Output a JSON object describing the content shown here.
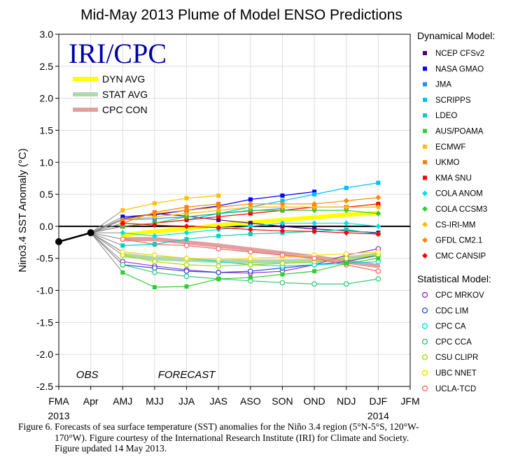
{
  "chart_data": {
    "type": "line",
    "title": "Mid-May 2013 Plume of Model ENSO Predictions",
    "ylabel": "Nino3.4 SST Anomaly (°C)",
    "logo": "IRI/CPC",
    "x": [
      "FMA",
      "Apr",
      "AMJ",
      "MJJ",
      "JJA",
      "JAS",
      "ASO",
      "SON",
      "OND",
      "NDJ",
      "DJF",
      "JFM"
    ],
    "year_labels": {
      "start": "2013",
      "end": "2014"
    },
    "region_labels": {
      "obs": "OBS",
      "forecast": "FORECAST"
    },
    "ylim": [
      -2.5,
      3.0
    ],
    "yticks": [
      "-2.5",
      "-2.0",
      "-1.5",
      "-1.0",
      "-0.5",
      "0.0",
      "0.5",
      "1.0",
      "1.5",
      "2.0",
      "2.5",
      "3.0"
    ],
    "grid": true,
    "observed": {
      "x": [
        "FMA",
        "Apr"
      ],
      "values": [
        -0.24,
        -0.1
      ],
      "color": "#000000"
    },
    "averages": [
      {
        "name": "DYN AVG",
        "color": "#ffff00",
        "values": [
          -0.14,
          -0.08,
          -0.04,
          0.02,
          0.06,
          0.1,
          0.14,
          0.18,
          0.21
        ]
      },
      {
        "name": "STAT AVG",
        "color": "#b0d8b0",
        "values": [
          -0.45,
          -0.5,
          -0.52,
          -0.54,
          -0.55,
          -0.55,
          -0.54,
          -0.5,
          -0.44
        ]
      },
      {
        "name": "CPC CON",
        "color": "#e0a0a0",
        "values": [
          -0.2,
          -0.2,
          -0.25,
          -0.3,
          -0.36,
          -0.42,
          -0.48,
          -0.55,
          -0.62
        ]
      }
    ],
    "legend_position": "right",
    "dynamical_heading": "Dynamical Model:",
    "statistical_heading": "Statistical Model:",
    "dynamical_models": [
      {
        "name": "NCEP CFSv2",
        "color": "#4b0082",
        "values": [
          0.12,
          0.2,
          0.16,
          0.1,
          0.05,
          0.0,
          -0.04,
          -0.07,
          -0.1
        ]
      },
      {
        "name": "NASA GMAO",
        "color": "#0000ff",
        "values": [
          0.15,
          0.18,
          0.25,
          0.32,
          0.42,
          0.48,
          0.54,
          null,
          null
        ]
      },
      {
        "name": "JMA",
        "color": "#1e90ff",
        "values": [
          0.1,
          0.12,
          0.15,
          0.2,
          0.24,
          0.28,
          null,
          null,
          null
        ]
      },
      {
        "name": "SCRIPPS",
        "color": "#00bfff",
        "values": [
          0.0,
          0.05,
          0.1,
          0.2,
          0.3,
          0.4,
          0.5,
          0.6,
          0.68
        ]
      },
      {
        "name": "LDEO",
        "color": "#00d0c0",
        "values": [
          -0.3,
          -0.28,
          -0.2,
          -0.15,
          -0.12,
          -0.1,
          -0.08,
          -0.05,
          -0.12
        ]
      },
      {
        "name": "AUS/POAMA",
        "color": "#32cd32",
        "values": [
          -0.72,
          -0.95,
          -0.94,
          -0.82,
          -0.8,
          -0.75,
          -0.7,
          -0.58,
          -0.5
        ]
      },
      {
        "name": "ECMWF",
        "color": "#ffc000",
        "values": [
          0.25,
          0.36,
          0.44,
          0.48,
          null,
          null,
          null,
          null,
          null
        ]
      },
      {
        "name": "UKMO",
        "color": "#ff7f00",
        "values": [
          0.05,
          0.22,
          0.3,
          0.35,
          null,
          null,
          null,
          null,
          null
        ]
      },
      {
        "name": "KMA SNU",
        "color": "#ff0000",
        "values": [
          0.0,
          0.05,
          0.1,
          0.15,
          0.2,
          0.25,
          0.3,
          0.3,
          0.35
        ]
      },
      {
        "name": "COLA ANOM",
        "color": "#00e0e0",
        "values": [
          -0.1,
          -0.15,
          -0.1,
          -0.05,
          0.0,
          0.05,
          0.05,
          0.05,
          0.0
        ]
      },
      {
        "name": "COLA CCSM3",
        "color": "#33cc33",
        "values": [
          0.0,
          0.05,
          0.15,
          0.2,
          0.25,
          0.25,
          0.25,
          0.25,
          0.2
        ]
      },
      {
        "name": "CS-IRI-MM",
        "color": "#ffbb00",
        "values": [
          0.1,
          0.15,
          0.2,
          0.25,
          0.3,
          0.3,
          0.3,
          0.3,
          0.3
        ]
      },
      {
        "name": "GFDL CM2.1",
        "color": "#ff8800",
        "values": [
          0.1,
          0.2,
          0.25,
          0.3,
          0.35,
          0.35,
          0.35,
          0.4,
          0.45
        ]
      },
      {
        "name": "CMC CANSIP",
        "color": "#ff0000",
        "values": [
          0.05,
          0.02,
          0.0,
          -0.02,
          -0.05,
          -0.07,
          -0.08,
          -0.1,
          -0.12
        ]
      }
    ],
    "statistical_models": [
      {
        "name": "CPC MRKOV",
        "color": "#9933cc",
        "values": [
          -0.55,
          -0.62,
          -0.68,
          -0.72,
          -0.73,
          -0.7,
          -0.6,
          -0.45,
          -0.35
        ]
      },
      {
        "name": "CDC LIM",
        "color": "#3355cc",
        "values": [
          -0.6,
          -0.65,
          -0.7,
          -0.72,
          -0.7,
          -0.65,
          -0.6,
          -0.55,
          -0.45
        ]
      },
      {
        "name": "CPC CA",
        "color": "#00ddee",
        "values": [
          -0.4,
          -0.45,
          -0.5,
          -0.55,
          -0.6,
          -0.62,
          -0.6,
          -0.58,
          -0.55
        ]
      },
      {
        "name": "CPC CCA",
        "color": "#33cc77",
        "values": [
          -0.6,
          -0.72,
          -0.78,
          -0.82,
          -0.85,
          -0.88,
          -0.9,
          -0.9,
          -0.82
        ]
      },
      {
        "name": "CSU CLIPR",
        "color": "#a0e000",
        "values": [
          -0.45,
          -0.55,
          -0.6,
          -0.62,
          -0.6,
          -0.58,
          -0.55,
          -0.5,
          -0.45
        ]
      },
      {
        "name": "UBC NNET",
        "color": "#ffdd00",
        "values": [
          -0.4,
          -0.45,
          -0.5,
          -0.52,
          -0.5,
          -0.48,
          -0.45,
          -0.43,
          -0.4
        ]
      },
      {
        "name": "UCLA-TCD",
        "color": "#ff6666",
        "values": [
          -0.2,
          -0.28,
          -0.3,
          -0.35,
          -0.4,
          -0.45,
          -0.5,
          -0.6,
          -0.7
        ]
      }
    ]
  },
  "caption": {
    "line1": "Figure 6. Forecasts of sea surface temperature (SST) anomalies  for the Niño 3.4 region  (5°N-5°S, 120°W-",
    "line2": "170°W).  Figure courtesy of the International Research Institute (IRI) for Climate and Society.",
    "line3": "Figure updated 14 May 2013."
  }
}
